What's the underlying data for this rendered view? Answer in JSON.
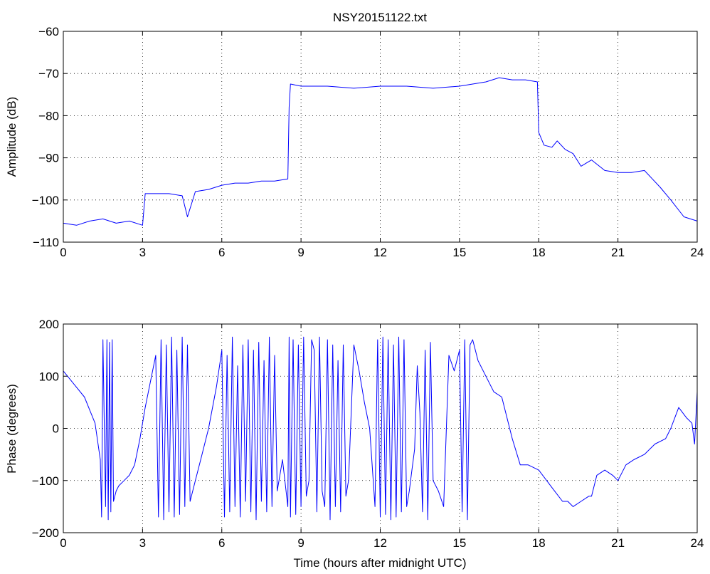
{
  "figure": {
    "title": "NSY20151122.txt",
    "line_color": "#0000ff"
  },
  "chart_data": [
    {
      "type": "line",
      "title": "NSY20151122.txt",
      "xlabel": "",
      "ylabel": "Amplitude (dB)",
      "xlim": [
        0,
        24
      ],
      "ylim": [
        -110,
        -60
      ],
      "xticks": [
        "0",
        "3",
        "6",
        "9",
        "12",
        "15",
        "18",
        "21",
        "24"
      ],
      "yticks": [
        "-110",
        "-100",
        "-90",
        "-80",
        "-70",
        "-60"
      ],
      "grid": true,
      "series": [
        {
          "color": "#0000ff",
          "x": [
            0,
            0.5,
            1.0,
            1.5,
            2.0,
            2.5,
            3.0,
            3.1,
            3.5,
            4.0,
            4.5,
            4.7,
            5.0,
            5.5,
            6.0,
            6.5,
            7.0,
            7.5,
            8.0,
            8.5,
            8.55,
            8.6,
            9.0,
            10.0,
            11.0,
            12.0,
            13.0,
            14.0,
            15.0,
            16.0,
            16.5,
            17.0,
            17.5,
            17.95,
            18.0,
            18.2,
            18.5,
            18.7,
            19.0,
            19.3,
            19.6,
            20.0,
            20.5,
            21.0,
            21.5,
            22.0,
            22.3,
            22.6,
            23.0,
            23.5,
            24.0
          ],
          "y": [
            -105.5,
            -106,
            -105,
            -104.5,
            -105.5,
            -105,
            -106,
            -98.5,
            -98.5,
            -98.5,
            -99,
            -104,
            -98,
            -97.5,
            -96.5,
            -96,
            -96,
            -95.5,
            -95.5,
            -95,
            -78,
            -72.5,
            -73,
            -73,
            -73.5,
            -73,
            -73,
            -73.5,
            -73,
            -72,
            -71,
            -71.5,
            -71.5,
            -72,
            -84,
            -87,
            -87.5,
            -86,
            -88,
            -89,
            -92,
            -90.5,
            -93,
            -93.5,
            -93.5,
            -93,
            -95,
            -97,
            -100,
            -104,
            -105
          ]
        }
      ]
    },
    {
      "type": "line",
      "title": "",
      "xlabel": "Time (hours after midnight UTC)",
      "ylabel": "Phase (degrees)",
      "xlim": [
        0,
        24
      ],
      "ylim": [
        -200,
        200
      ],
      "xticks": [
        "0",
        "3",
        "6",
        "9",
        "12",
        "15",
        "18",
        "21",
        "24"
      ],
      "yticks": [
        "-200",
        "-100",
        "0",
        "100",
        "200"
      ],
      "grid": true,
      "series": [
        {
          "color": "#0000ff",
          "x": [
            0,
            0.4,
            0.8,
            1.2,
            1.4,
            1.45,
            1.5,
            1.6,
            1.65,
            1.7,
            1.75,
            1.8,
            1.85,
            1.9,
            2.0,
            2.1,
            2.3,
            2.5,
            2.7,
            2.9,
            3.1,
            3.3,
            3.5,
            3.6,
            3.7,
            3.8,
            3.9,
            4.0,
            4.1,
            4.2,
            4.3,
            4.4,
            4.5,
            4.6,
            4.7,
            4.8,
            5.0,
            5.2,
            5.5,
            5.8,
            6.0,
            6.1,
            6.2,
            6.3,
            6.4,
            6.5,
            6.6,
            6.7,
            6.8,
            6.9,
            7.0,
            7.1,
            7.2,
            7.3,
            7.4,
            7.5,
            7.6,
            7.7,
            7.8,
            7.9,
            8.0,
            8.1,
            8.2,
            8.3,
            8.5,
            8.55,
            8.6,
            8.7,
            8.8,
            8.9,
            9.0,
            9.1,
            9.2,
            9.3,
            9.4,
            9.5,
            9.6,
            9.7,
            9.8,
            9.9,
            10.0,
            10.1,
            10.2,
            10.3,
            10.4,
            10.5,
            10.6,
            10.7,
            10.8,
            11.0,
            11.2,
            11.4,
            11.6,
            11.8,
            11.9,
            12.0,
            12.1,
            12.2,
            12.3,
            12.4,
            12.5,
            12.6,
            12.7,
            12.8,
            12.9,
            13.0,
            13.1,
            13.2,
            13.3,
            13.4,
            13.5,
            13.6,
            13.7,
            13.8,
            13.9,
            14.0,
            14.2,
            14.4,
            14.6,
            14.8,
            15.0,
            15.1,
            15.2,
            15.3,
            15.4,
            15.5,
            15.7,
            16.0,
            16.3,
            16.6,
            17.0,
            17.3,
            17.6,
            18.0,
            18.3,
            18.6,
            18.9,
            19.1,
            19.3,
            19.6,
            19.9,
            20.0,
            20.2,
            20.5,
            20.8,
            21.0,
            21.3,
            21.6,
            22.0,
            22.4,
            22.8,
            23.0,
            23.3,
            23.6,
            23.8,
            23.9,
            24.0
          ],
          "y": [
            110,
            85,
            60,
            10,
            -60,
            -170,
            170,
            -150,
            170,
            -175,
            165,
            -160,
            170,
            -140,
            -120,
            -110,
            -100,
            -90,
            -70,
            -20,
            40,
            90,
            140,
            -170,
            170,
            -175,
            160,
            -160,
            175,
            -170,
            150,
            -165,
            175,
            -150,
            160,
            -140,
            -100,
            -60,
            0,
            80,
            150,
            -170,
            140,
            -160,
            175,
            -150,
            120,
            -170,
            160,
            -140,
            170,
            -160,
            150,
            -175,
            165,
            -140,
            130,
            -160,
            175,
            -150,
            140,
            -120,
            -90,
            -60,
            -150,
            175,
            -170,
            170,
            -165,
            160,
            -150,
            175,
            -130,
            -100,
            170,
            150,
            -160,
            175,
            -120,
            -150,
            170,
            -175,
            160,
            -150,
            130,
            -160,
            160,
            -130,
            -100,
            160,
            110,
            50,
            0,
            -150,
            170,
            -170,
            175,
            -165,
            170,
            -175,
            160,
            -170,
            175,
            -160,
            170,
            -150,
            -120,
            -80,
            -40,
            120,
            30,
            -160,
            150,
            -175,
            165,
            -100,
            -120,
            -150,
            140,
            110,
            150,
            -160,
            170,
            -175,
            160,
            170,
            130,
            100,
            70,
            60,
            -20,
            -70,
            -70,
            -80,
            -100,
            -120,
            -140,
            -140,
            -150,
            -140,
            -130,
            -130,
            -90,
            -80,
            -90,
            -100,
            -70,
            -60,
            -50,
            -30,
            -20,
            0,
            40,
            20,
            10,
            -30,
            70
          ]
        }
      ]
    }
  ]
}
